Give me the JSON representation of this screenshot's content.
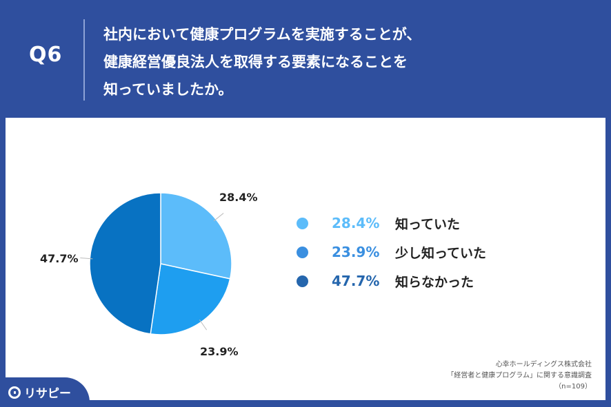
{
  "header": {
    "qnum": "Q6",
    "question_lines": [
      "社内において健康プログラムを実施することが、",
      "健康経営優良法人を取得する要素になることを",
      "知っていましたか。"
    ]
  },
  "chart_data": {
    "type": "pie",
    "start_angle_deg": 0,
    "direction": "clockwise",
    "legend_placement": "right",
    "slices": [
      {
        "label": "知っていた",
        "value": 28.4,
        "value_label": "28.4%",
        "color": "#5cbcfa",
        "legend_color": "#5cbcfa"
      },
      {
        "label": "少し知っていた",
        "value": 23.9,
        "value_label": "23.9%",
        "color": "#1e9ef0",
        "legend_color": "#3a8fe0"
      },
      {
        "label": "知らなかった",
        "value": 47.7,
        "value_label": "47.7%",
        "color": "#0872c2",
        "legend_color": "#2566ad"
      }
    ]
  },
  "source": {
    "line1": "心幸ホールディングス株式会社",
    "line2": "「経営者と健康プログラム」に関する意識調査",
    "line3": "（n=109）"
  },
  "brand": {
    "name": "リサピー"
  }
}
